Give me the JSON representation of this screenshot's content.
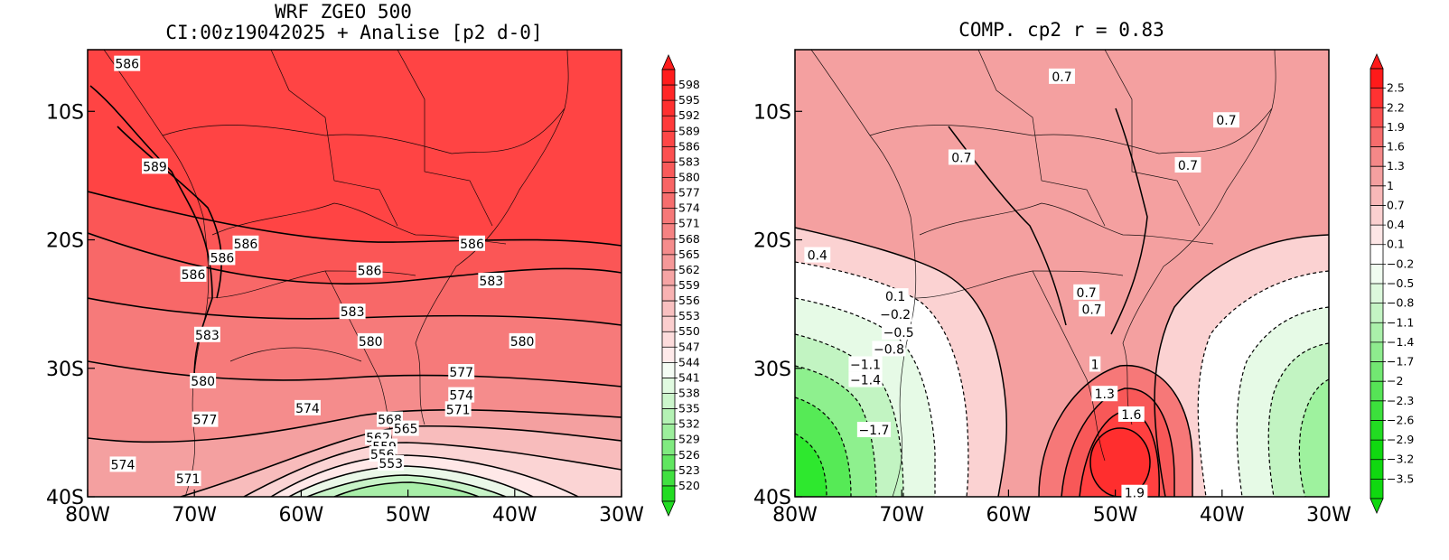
{
  "chart_data": [
    {
      "type": "heatmap",
      "title": "WRF ZGEO 500",
      "subtitle": "CI:00z19042025 + Analise  [p2 d-0]",
      "x_ticks": [
        "80W",
        "70W",
        "60W",
        "50W",
        "40W",
        "30W"
      ],
      "y_ticks": [
        "10S",
        "20S",
        "30S",
        "40S"
      ],
      "xlim_lon": [
        -80,
        -30
      ],
      "ylim_lat": [
        -40,
        -5.2
      ],
      "colorbar_levels": [
        598,
        595,
        592,
        589,
        586,
        583,
        580,
        577,
        574,
        571,
        568,
        565,
        562,
        559,
        556,
        553,
        550,
        547,
        544,
        541,
        538,
        535,
        532,
        529,
        526,
        523,
        520
      ],
      "contour_labels": [
        {
          "text": "586",
          "lon": -76.3,
          "lat": -6.3
        },
        {
          "text": "589",
          "lon": -73.7,
          "lat": -14.3
        },
        {
          "text": "586",
          "lon": -65.2,
          "lat": -20.3
        },
        {
          "text": "586",
          "lon": -67.4,
          "lat": -21.4
        },
        {
          "text": "586",
          "lon": -70.1,
          "lat": -22.7
        },
        {
          "text": "586",
          "lon": -53.6,
          "lat": -22.4
        },
        {
          "text": "586",
          "lon": -44.0,
          "lat": -20.3
        },
        {
          "text": "583",
          "lon": -42.2,
          "lat": -23.2
        },
        {
          "text": "583",
          "lon": -55.2,
          "lat": -25.6
        },
        {
          "text": "583",
          "lon": -68.8,
          "lat": -27.4
        },
        {
          "text": "580",
          "lon": -53.5,
          "lat": -27.9
        },
        {
          "text": "580",
          "lon": -39.3,
          "lat": -27.9
        },
        {
          "text": "580",
          "lon": -69.2,
          "lat": -31.0
        },
        {
          "text": "577",
          "lon": -45.0,
          "lat": -30.3
        },
        {
          "text": "574",
          "lon": -45.0,
          "lat": -32.1
        },
        {
          "text": "571",
          "lon": -45.3,
          "lat": -33.2
        },
        {
          "text": "574",
          "lon": -59.4,
          "lat": -33.1
        },
        {
          "text": "577",
          "lon": -69.0,
          "lat": -34.0
        },
        {
          "text": "568",
          "lon": -51.7,
          "lat": -34.0
        },
        {
          "text": "565",
          "lon": -50.2,
          "lat": -34.7
        },
        {
          "text": "562",
          "lon": -52.8,
          "lat": -35.4
        },
        {
          "text": "559",
          "lon": -52.2,
          "lat": -36.1
        },
        {
          "text": "556",
          "lon": -52.4,
          "lat": -36.7
        },
        {
          "text": "553",
          "lon": -51.6,
          "lat": -37.4
        },
        {
          "text": "574",
          "lon": -76.7,
          "lat": -37.5
        },
        {
          "text": "571",
          "lon": -70.6,
          "lat": -38.6
        }
      ]
    },
    {
      "type": "heatmap",
      "title": "COMP. cp2  r =  0.83",
      "x_ticks": [
        "80W",
        "70W",
        "60W",
        "50W",
        "40W",
        "30W"
      ],
      "y_ticks": [
        "10S",
        "20S",
        "30S",
        "40S"
      ],
      "xlim_lon": [
        -80,
        -30
      ],
      "ylim_lat": [
        -40,
        -5.2
      ],
      "colorbar_levels": [
        "2.5",
        "2.2",
        "1.9",
        "1.6",
        "1.3",
        "1",
        "0.7",
        "0.4",
        "0.1",
        "−0.2",
        "−0.5",
        "−0.8",
        "−1.1",
        "−1.4",
        "−1.7",
        "−2",
        "−2.3",
        "−2.6",
        "−2.9",
        "−3.2",
        "−3.5"
      ],
      "contour_labels": [
        {
          "text": "0.7",
          "lon": -55.0,
          "lat": -7.3
        },
        {
          "text": "0.7",
          "lon": -39.6,
          "lat": -10.7
        },
        {
          "text": "0.7",
          "lon": -64.4,
          "lat": -13.6
        },
        {
          "text": "0.7",
          "lon": -43.2,
          "lat": -14.2
        },
        {
          "text": "0.4",
          "lon": -77.9,
          "lat": -21.2
        },
        {
          "text": "0.1",
          "lon": -70.6,
          "lat": -24.4
        },
        {
          "text": "−0.2",
          "lon": -70.6,
          "lat": -25.8
        },
        {
          "text": "−0.5",
          "lon": -70.3,
          "lat": -27.2
        },
        {
          "text": "−0.8",
          "lon": -71.2,
          "lat": -28.5
        },
        {
          "text": "−1.1",
          "lon": -73.4,
          "lat": -29.7
        },
        {
          "text": "−1.4",
          "lon": -73.4,
          "lat": -30.9
        },
        {
          "text": "0.7",
          "lon": -52.7,
          "lat": -24.1
        },
        {
          "text": "0.7",
          "lon": -52.2,
          "lat": -25.4
        },
        {
          "text": "1",
          "lon": -51.9,
          "lat": -29.7
        },
        {
          "text": "1.3",
          "lon": -51.0,
          "lat": -32.0
        },
        {
          "text": "1.6",
          "lon": -48.5,
          "lat": -33.6
        },
        {
          "text": "−1.7",
          "lon": -72.6,
          "lat": -34.8
        },
        {
          "text": "1.9",
          "lon": -48.2,
          "lat": -39.7
        }
      ]
    }
  ],
  "colors": {
    "red_dark": "#ff3030",
    "red": "#ff4444",
    "red_mid": "#f86464",
    "pink": "#f4a0a0",
    "pink_light": "#fbd2d2",
    "white": "#ffffff",
    "green_pale": "#e4fae4",
    "green_light": "#b4f2b4",
    "green": "#78f078",
    "green_dark": "#2ee82e"
  }
}
